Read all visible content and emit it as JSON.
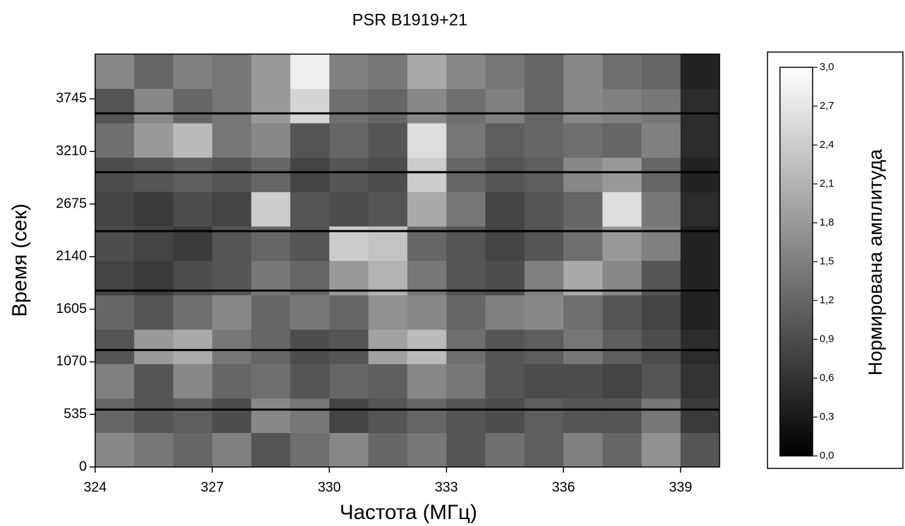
{
  "chart_data": {
    "type": "heatmap",
    "title": "PSR B1919+21",
    "x_label": "Частота (МГц)",
    "y_label": "Время (сек)",
    "xlim": [
      324,
      340
    ],
    "ylim": [
      0,
      4200
    ],
    "xticks": [
      324,
      327,
      330,
      333,
      336,
      339
    ],
    "yticks": [
      0,
      535,
      1070,
      1605,
      2140,
      2675,
      3210,
      3745
    ],
    "x_edges": [
      324,
      325,
      326,
      327,
      328,
      329,
      330,
      331,
      332,
      333,
      334,
      335,
      336,
      337,
      338,
      339,
      340
    ],
    "y_edges": [
      0,
      350,
      700,
      1050,
      1400,
      1750,
      2100,
      2450,
      2800,
      3150,
      3500,
      3850,
      4200
    ],
    "z": [
      [
        1.6,
        1.4,
        1.2,
        1.5,
        1.0,
        1.3,
        1.6,
        1.2,
        1.4,
        1.0,
        1.3,
        1.1,
        1.5,
        1.2,
        1.7,
        1.0
      ],
      [
        1.2,
        1.0,
        1.1,
        0.9,
        1.6,
        1.4,
        0.8,
        1.0,
        1.2,
        1.0,
        0.9,
        1.1,
        1.0,
        1.0,
        1.4,
        0.7
      ],
      [
        1.5,
        1.0,
        1.6,
        1.2,
        1.3,
        1.0,
        1.2,
        1.1,
        1.6,
        1.4,
        1.0,
        0.9,
        0.9,
        0.8,
        1.0,
        0.6
      ],
      [
        1.0,
        1.8,
        2.0,
        1.4,
        1.2,
        0.9,
        1.0,
        1.9,
        2.2,
        1.3,
        1.0,
        1.1,
        1.4,
        1.1,
        0.9,
        0.5
      ],
      [
        1.2,
        1.0,
        1.3,
        1.6,
        1.2,
        1.4,
        1.2,
        1.7,
        1.6,
        1.2,
        1.5,
        1.6,
        1.3,
        1.0,
        0.8,
        0.4
      ],
      [
        0.8,
        0.7,
        0.9,
        1.0,
        1.4,
        1.2,
        1.8,
        2.1,
        1.4,
        1.0,
        0.9,
        1.5,
        2.0,
        1.6,
        1.0,
        0.4
      ],
      [
        0.9,
        0.8,
        0.7,
        1.0,
        1.2,
        1.0,
        2.4,
        2.3,
        1.2,
        1.0,
        0.8,
        1.0,
        1.3,
        1.8,
        1.5,
        0.4
      ],
      [
        0.8,
        0.7,
        0.9,
        0.8,
        2.4,
        1.0,
        0.9,
        1.0,
        2.0,
        1.4,
        0.8,
        1.0,
        1.2,
        2.6,
        1.4,
        0.5
      ],
      [
        0.9,
        1.0,
        1.1,
        1.0,
        1.2,
        0.8,
        1.0,
        0.9,
        2.4,
        1.2,
        1.0,
        1.1,
        1.6,
        1.8,
        1.2,
        0.4
      ],
      [
        1.3,
        1.8,
        2.2,
        1.4,
        1.6,
        1.0,
        1.2,
        1.0,
        2.6,
        1.4,
        1.1,
        1.2,
        1.3,
        1.2,
        1.5,
        0.5
      ],
      [
        1.0,
        1.6,
        1.2,
        1.4,
        1.8,
        2.5,
        1.3,
        1.2,
        1.6,
        1.3,
        1.5,
        1.2,
        1.6,
        1.5,
        1.4,
        0.5
      ],
      [
        1.6,
        1.2,
        1.5,
        1.4,
        1.8,
        2.8,
        1.5,
        1.4,
        2.0,
        1.6,
        1.4,
        1.2,
        1.6,
        1.3,
        1.2,
        0.4
      ]
    ],
    "gaps": [
      584,
      1190,
      1795,
      2400,
      2999,
      3597
    ],
    "gap_color": "#000000",
    "colormap": [
      "#000000",
      "#ffffff"
    ],
    "colorbar_label": "Нормирована амплитуда",
    "clim": [
      0,
      3.0
    ],
    "cticks": [
      {
        "value": 0,
        "label": "0,0"
      },
      {
        "value": 0.3,
        "label": "0,3"
      },
      {
        "value": 0.6,
        "label": "0,6"
      },
      {
        "value": 0.9,
        "label": "0,9"
      },
      {
        "value": 1.2,
        "label": "1,2"
      },
      {
        "value": 1.5,
        "label": "1,5"
      },
      {
        "value": 1.8,
        "label": "1,8"
      },
      {
        "value": 2.1,
        "label": "2,1"
      },
      {
        "value": 2.4,
        "label": "2,4"
      },
      {
        "value": 2.7,
        "label": "2,7"
      },
      {
        "value": 3.0,
        "label": "3,0"
      }
    ]
  }
}
